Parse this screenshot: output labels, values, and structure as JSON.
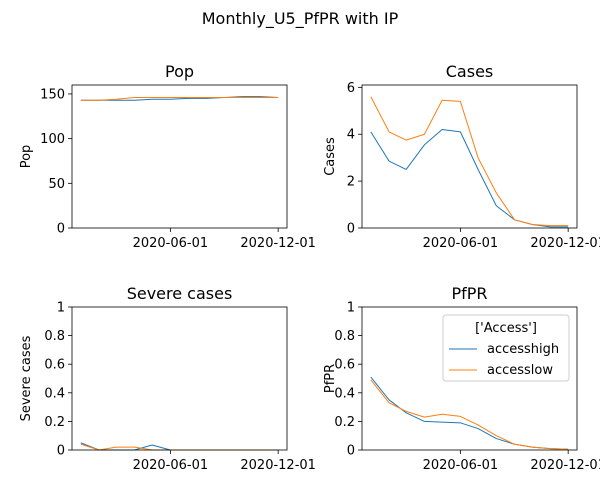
{
  "figure_title": "Monthly_U5_PfPR with IP",
  "colors": {
    "accesshigh": "#1f77b4",
    "accesslow": "#ff7f0e"
  },
  "legend": {
    "title": "['Access']",
    "placement": "top-right",
    "subplot_index": 3
  },
  "chart_data": [
    {
      "type": "line",
      "title": "Pop",
      "xlabel": "",
      "ylabel": "Pop",
      "x": [
        "2020-01-01",
        "2020-02-01",
        "2020-03-01",
        "2020-04-01",
        "2020-05-01",
        "2020-06-01",
        "2020-07-01",
        "2020-08-01",
        "2020-09-01",
        "2020-10-01",
        "2020-11-01",
        "2020-12-01"
      ],
      "xticks": [
        "2020-06-01",
        "2020-12-01"
      ],
      "ylim": [
        0,
        160
      ],
      "yticks": [
        0,
        50,
        100,
        150
      ],
      "series": [
        {
          "name": "accesshigh",
          "values": [
            143,
            143,
            143,
            143,
            144,
            144,
            145,
            145,
            146,
            147,
            147,
            146
          ]
        },
        {
          "name": "accesslow",
          "values": [
            143,
            143,
            144,
            146,
            146,
            146,
            146,
            146,
            146,
            146,
            146,
            146
          ]
        }
      ]
    },
    {
      "type": "line",
      "title": "Cases",
      "xlabel": "",
      "ylabel": "Cases",
      "x": [
        "2020-01-01",
        "2020-02-01",
        "2020-03-01",
        "2020-04-01",
        "2020-05-01",
        "2020-06-01",
        "2020-07-01",
        "2020-08-01",
        "2020-09-01",
        "2020-10-01",
        "2020-11-01",
        "2020-12-01"
      ],
      "xticks": [
        "2020-06-01",
        "2020-12-01"
      ],
      "ylim": [
        0,
        6.1
      ],
      "yticks": [
        0,
        2,
        4,
        6
      ],
      "series": [
        {
          "name": "accesshigh",
          "values": [
            4.1,
            2.85,
            2.5,
            3.55,
            4.2,
            4.1,
            2.5,
            0.95,
            0.35,
            0.15,
            0.05,
            0.05
          ]
        },
        {
          "name": "accesslow",
          "values": [
            5.6,
            4.1,
            3.75,
            4.0,
            5.45,
            5.4,
            3.0,
            1.5,
            0.35,
            0.15,
            0.1,
            0.1
          ]
        }
      ]
    },
    {
      "type": "line",
      "title": "Severe cases",
      "xlabel": "",
      "ylabel": "Severe cases",
      "x": [
        "2020-01-01",
        "2020-02-01",
        "2020-03-01",
        "2020-04-01",
        "2020-05-01",
        "2020-06-01",
        "2020-07-01",
        "2020-08-01",
        "2020-09-01",
        "2020-10-01",
        "2020-11-01",
        "2020-12-01"
      ],
      "xticks": [
        "2020-06-01",
        "2020-12-01"
      ],
      "ylim": [
        0,
        1.0
      ],
      "yticks": [
        0.0,
        0.2,
        0.4,
        0.6,
        0.8,
        1.0
      ],
      "series": [
        {
          "name": "accesshigh",
          "values": [
            0.05,
            0.0,
            0.0,
            0.0,
            0.035,
            0.0,
            0.0,
            0.0,
            0.0,
            0.0,
            0.0,
            0.0
          ]
        },
        {
          "name": "accesslow",
          "values": [
            0.04,
            0.0,
            0.02,
            0.02,
            0.0,
            0.0,
            0.0,
            0.0,
            0.0,
            0.0,
            0.0,
            0.0
          ]
        }
      ]
    },
    {
      "type": "line",
      "title": "PfPR",
      "xlabel": "",
      "ylabel": "PfPR",
      "x": [
        "2020-01-01",
        "2020-02-01",
        "2020-03-01",
        "2020-04-01",
        "2020-05-01",
        "2020-06-01",
        "2020-07-01",
        "2020-08-01",
        "2020-09-01",
        "2020-10-01",
        "2020-11-01",
        "2020-12-01"
      ],
      "xticks": [
        "2020-06-01",
        "2020-12-01"
      ],
      "ylim": [
        0,
        1.0
      ],
      "yticks": [
        0.0,
        0.2,
        0.4,
        0.6,
        0.8,
        1.0
      ],
      "series": [
        {
          "name": "accesshigh",
          "values": [
            0.51,
            0.35,
            0.26,
            0.2,
            0.195,
            0.19,
            0.15,
            0.08,
            0.04,
            0.02,
            0.01,
            0.005
          ]
        },
        {
          "name": "accesslow",
          "values": [
            0.49,
            0.33,
            0.27,
            0.23,
            0.25,
            0.235,
            0.175,
            0.1,
            0.04,
            0.02,
            0.01,
            0.005
          ]
        }
      ]
    }
  ]
}
